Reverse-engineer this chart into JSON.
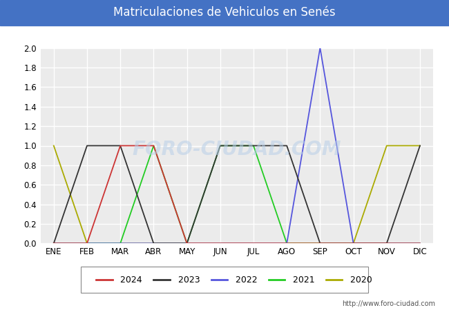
{
  "title": "Matriculaciones de Vehiculos en Senés",
  "title_bg_color": "#4472c4",
  "title_text_color": "#ffffff",
  "months": [
    "ENE",
    "FEB",
    "MAR",
    "ABR",
    "MAY",
    "JUN",
    "JUL",
    "AGO",
    "SEP",
    "OCT",
    "NOV",
    "DIC"
  ],
  "series": {
    "2024": {
      "color": "#cc3333",
      "values": [
        0,
        0,
        1,
        1,
        0,
        0,
        0,
        0,
        0,
        0,
        0,
        0
      ]
    },
    "2023": {
      "color": "#333333",
      "values": [
        0,
        1,
        1,
        0,
        0,
        1,
        1,
        1,
        0,
        0,
        0,
        1
      ]
    },
    "2022": {
      "color": "#5555dd",
      "values": [
        0,
        0,
        0,
        0,
        0,
        0,
        0,
        0,
        2,
        0,
        0,
        0
      ]
    },
    "2021": {
      "color": "#22cc22",
      "values": [
        0,
        0,
        0,
        1,
        0,
        1,
        1,
        0,
        0,
        0,
        0,
        0
      ]
    },
    "2020": {
      "color": "#aaaa00",
      "values": [
        1,
        0,
        0,
        0,
        0,
        0,
        0,
        0,
        0,
        0,
        1,
        1
      ]
    }
  },
  "ylim": [
    0.0,
    2.0
  ],
  "yticks": [
    0.0,
    0.2,
    0.4,
    0.6,
    0.8,
    1.0,
    1.2,
    1.4,
    1.6,
    1.8,
    2.0
  ],
  "plot_bg_color": "#ebebeb",
  "fig_bg_color": "#ffffff",
  "grid_color": "#ffffff",
  "watermark": "FORO-CIUDAD.COM",
  "url": "http://www.foro-ciudad.com",
  "legend_years": [
    "2024",
    "2023",
    "2022",
    "2021",
    "2020"
  ],
  "legend_colors": [
    "#cc3333",
    "#333333",
    "#5555dd",
    "#22cc22",
    "#aaaa00"
  ]
}
